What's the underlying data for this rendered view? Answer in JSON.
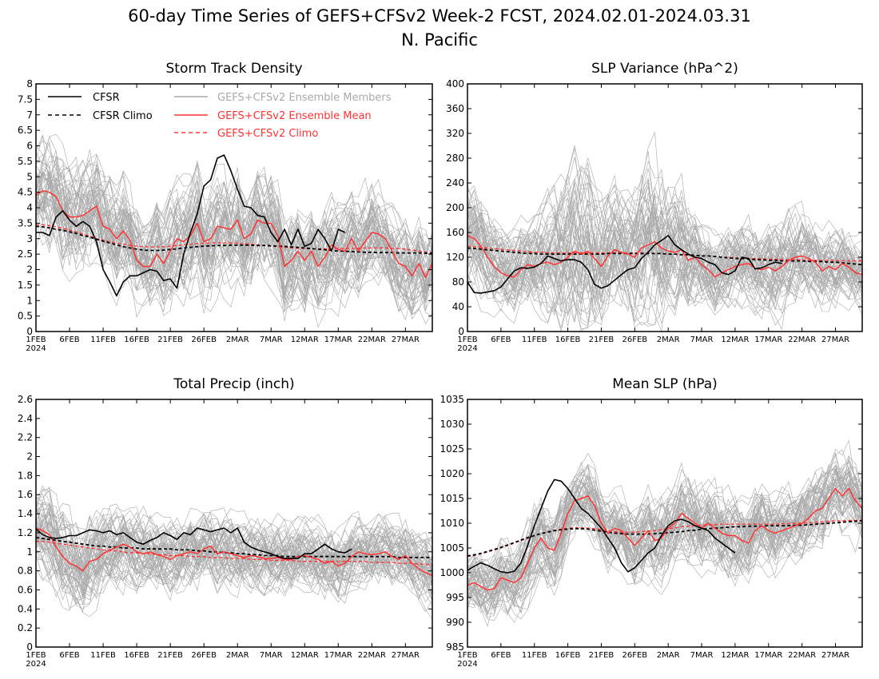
{
  "figure": {
    "title_line1": "60-day Time Series of GEFS+CFSv2 Week-2 FCST, 2024.02.01-2024.03.31",
    "title_line2": "N. Pacific"
  },
  "legend": {
    "cfsr": "CFSR",
    "cfsr_climo": "CFSR Climo",
    "members": "GEFS+CFSv2 Ensemble Members",
    "ens_mean": "GEFS+CFSv2 Ensemble Mean",
    "ens_climo": "GEFS+CFSv2 Climo"
  },
  "colors": {
    "cfsr": "#000000",
    "members": "#a9a9a9",
    "ens": "#ff3333"
  },
  "x_ticks": [
    "1FEB",
    "6FEB",
    "11FEB",
    "16FEB",
    "21FEB",
    "26FEB",
    "2MAR",
    "7MAR",
    "12MAR",
    "17MAR",
    "22MAR",
    "27MAR"
  ],
  "x_year": "2024",
  "chart_data": [
    {
      "type": "line",
      "title": "Storm Track Density",
      "ylim": [
        0,
        8
      ],
      "yticks": [
        "0",
        "0.5",
        "1",
        "1.5",
        "2",
        "2.5",
        "3",
        "3.5",
        "4",
        "4.5",
        "5",
        "5.5",
        "6",
        "6.5",
        "7",
        "7.5",
        "8"
      ],
      "x_days": 60,
      "cfsr": [
        3.2,
        3.2,
        3.1,
        3.7,
        3.9,
        3.6,
        3.4,
        3.55,
        3.4,
        2.9,
        2.0,
        1.6,
        1.15,
        1.6,
        1.8,
        1.8,
        1.9,
        2.0,
        1.95,
        1.65,
        1.7,
        1.4,
        2.5,
        3.2,
        3.8,
        4.7,
        4.9,
        5.6,
        5.7,
        5.2,
        4.6,
        4.05,
        4.0,
        3.75,
        3.7,
        3.2,
        2.9,
        3.3,
        2.8,
        3.3,
        2.75,
        2.85,
        3.3,
        3.0,
        2.6,
        3.3,
        3.2
      ],
      "cfsr_climo": [
        3.4,
        3.38,
        3.35,
        3.3,
        3.27,
        3.22,
        3.17,
        3.1,
        3.05,
        2.98,
        2.92,
        2.86,
        2.8,
        2.74,
        2.7,
        2.66,
        2.63,
        2.62,
        2.62,
        2.63,
        2.65,
        2.67,
        2.7,
        2.72,
        2.74,
        2.76,
        2.77,
        2.78,
        2.78,
        2.79,
        2.79,
        2.79,
        2.79,
        2.78,
        2.78,
        2.77,
        2.76,
        2.75,
        2.73,
        2.72,
        2.7,
        2.68,
        2.66,
        2.64,
        2.62,
        2.6,
        2.59,
        2.58,
        2.57,
        2.56,
        2.56,
        2.55,
        2.55,
        2.55,
        2.54,
        2.54,
        2.54,
        2.54,
        2.53,
        2.53
      ],
      "ens_mean": [
        4.4,
        4.55,
        4.5,
        4.35,
        3.9,
        3.7,
        3.7,
        3.75,
        3.9,
        4.05,
        3.4,
        3.3,
        3.0,
        3.25,
        2.95,
        2.3,
        2.1,
        2.1,
        2.5,
        2.2,
        2.6,
        3.0,
        2.9,
        3.1,
        3.5,
        2.9,
        3.0,
        3.4,
        3.35,
        3.3,
        3.6,
        3.0,
        3.15,
        3.6,
        3.5,
        3.5,
        3.1,
        2.1,
        2.3,
        2.6,
        2.3,
        2.6,
        2.1,
        2.4,
        2.8,
        2.65,
        2.6,
        3.0,
        2.6,
        2.9,
        3.2,
        3.15,
        3.0,
        2.6,
        2.2,
        2.1,
        1.8,
        2.2,
        1.75,
        2.2
      ],
      "ens_climo": [
        3.45,
        3.45,
        3.42,
        3.38,
        3.33,
        3.28,
        3.22,
        3.15,
        3.08,
        3.0,
        2.95,
        2.9,
        2.86,
        2.82,
        2.78,
        2.76,
        2.74,
        2.73,
        2.73,
        2.74,
        2.76,
        2.78,
        2.8,
        2.82,
        2.84,
        2.85,
        2.86,
        2.86,
        2.86,
        2.86,
        2.85,
        2.84,
        2.82,
        2.8,
        2.78,
        2.76,
        2.74,
        2.72,
        2.7,
        2.69,
        2.68,
        2.67,
        2.67,
        2.67,
        2.67,
        2.68,
        2.68,
        2.69,
        2.69,
        2.7,
        2.7,
        2.7,
        2.7,
        2.69,
        2.68,
        2.66,
        2.63,
        2.6,
        2.57,
        2.55
      ],
      "member_spread": [
        1.9,
        1.9,
        2.0,
        2.0,
        2.1,
        2.1,
        2.1,
        2.0,
        2.0,
        1.9,
        1.9,
        1.8,
        1.8,
        1.8,
        1.7,
        1.7,
        1.6,
        1.6,
        1.6,
        1.6,
        1.7,
        1.7,
        1.8,
        1.9,
        2.0,
        2.0,
        2.0,
        1.9,
        1.9,
        1.9,
        1.8,
        1.8,
        1.8,
        1.8,
        1.8,
        1.7,
        1.7,
        1.7,
        1.7,
        1.6,
        1.6,
        1.6,
        1.6,
        1.6,
        1.6,
        1.6,
        1.6,
        1.6,
        1.6,
        1.6,
        1.6,
        1.5,
        1.5,
        1.5,
        1.5,
        1.5,
        1.5,
        1.5,
        1.5,
        1.5
      ]
    },
    {
      "type": "line",
      "title": "SLP Variance (hPa^2)",
      "ylim": [
        0,
        400
      ],
      "yticks": [
        "0",
        "40",
        "80",
        "120",
        "160",
        "200",
        "240",
        "280",
        "320",
        "360",
        "400"
      ],
      "x_days": 60,
      "cfsr": [
        80,
        63,
        62,
        64,
        66,
        72,
        85,
        98,
        103,
        102,
        104,
        110,
        122,
        118,
        114,
        116,
        116,
        112,
        100,
        76,
        70,
        74,
        83,
        92,
        100,
        103,
        118,
        128,
        140,
        147,
        155,
        140,
        132,
        125,
        120,
        118,
        112,
        108,
        95,
        92,
        98,
        120,
        118,
        101,
        103,
        108,
        112,
        110
      ],
      "cfsr_climo": [
        135,
        134,
        133,
        132,
        131,
        130,
        129,
        128,
        127,
        126,
        126,
        125,
        125,
        125,
        125,
        125,
        125,
        125,
        125,
        125,
        125,
        126,
        126,
        126,
        126,
        126,
        126,
        126,
        126,
        126,
        125,
        125,
        124,
        124,
        123,
        122,
        122,
        121,
        120,
        119,
        118,
        118,
        117,
        116,
        116,
        115,
        115,
        114,
        114,
        114,
        114,
        113,
        113,
        113,
        112,
        112,
        111,
        110,
        109,
        108
      ],
      "ens_mean": [
        155,
        150,
        138,
        120,
        105,
        95,
        90,
        88,
        100,
        108,
        105,
        110,
        112,
        108,
        112,
        120,
        130,
        125,
        130,
        118,
        105,
        122,
        132,
        128,
        125,
        120,
        135,
        140,
        145,
        135,
        130,
        128,
        132,
        115,
        120,
        108,
        100,
        88,
        95,
        100,
        105,
        108,
        110,
        102,
        100,
        104,
        98,
        105,
        115,
        120,
        122,
        118,
        112,
        98,
        105,
        100,
        110,
        104,
        95,
        92
      ],
      "ens_climo": [
        138,
        137,
        136,
        135,
        134,
        133,
        132,
        131,
        130,
        129,
        128,
        128,
        127,
        127,
        127,
        127,
        127,
        127,
        127,
        127,
        127,
        127,
        127,
        127,
        127,
        127,
        127,
        127,
        126,
        126,
        125,
        125,
        124,
        124,
        123,
        122,
        122,
        121,
        120,
        120,
        119,
        119,
        118,
        118,
        117,
        117,
        117,
        116,
        116,
        116,
        116,
        115,
        115,
        115,
        115,
        115,
        114,
        114,
        114,
        114
      ],
      "member_spread": [
        90,
        90,
        85,
        80,
        75,
        70,
        65,
        65,
        70,
        75,
        80,
        90,
        100,
        110,
        120,
        130,
        140,
        150,
        150,
        130,
        110,
        100,
        95,
        95,
        100,
        110,
        120,
        130,
        130,
        120,
        110,
        100,
        95,
        85,
        80,
        75,
        70,
        65,
        65,
        65,
        65,
        65,
        65,
        65,
        65,
        70,
        75,
        80,
        80,
        75,
        70,
        65,
        65,
        60,
        60,
        60,
        60,
        55,
        55,
        55
      ]
    },
    {
      "type": "line",
      "title": "Total Precip (inch)",
      "ylim": [
        0,
        2.6
      ],
      "yticks": [
        "0",
        "0.2",
        "0.4",
        "0.6",
        "0.8",
        "1",
        "1.2",
        "1.4",
        "1.6",
        "1.8",
        "2",
        "2.2",
        "2.4",
        "2.6"
      ],
      "x_days": 60,
      "cfsr": [
        1.24,
        1.18,
        1.15,
        1.14,
        1.15,
        1.17,
        1.17,
        1.2,
        1.23,
        1.22,
        1.2,
        1.22,
        1.18,
        1.2,
        1.15,
        1.1,
        1.08,
        1.12,
        1.15,
        1.2,
        1.17,
        1.13,
        1.2,
        1.18,
        1.25,
        1.23,
        1.21,
        1.23,
        1.25,
        1.2,
        1.25,
        1.1,
        1.05,
        1.02,
        1.0,
        0.98,
        0.95,
        0.93,
        0.93,
        0.93,
        0.98,
        0.98,
        1.03,
        1.08,
        1.03,
        1.0,
        0.99,
        1.03
      ],
      "cfsr_climo": [
        1.15,
        1.14,
        1.13,
        1.12,
        1.11,
        1.1,
        1.09,
        1.08,
        1.07,
        1.06,
        1.06,
        1.05,
        1.05,
        1.04,
        1.04,
        1.04,
        1.03,
        1.03,
        1.03,
        1.03,
        1.03,
        1.02,
        1.02,
        1.02,
        1.01,
        1.01,
        1.0,
        1.0,
        0.99,
        0.99,
        0.98,
        0.98,
        0.97,
        0.97,
        0.96,
        0.96,
        0.96,
        0.95,
        0.95,
        0.95,
        0.95,
        0.95,
        0.95,
        0.95,
        0.95,
        0.95,
        0.95,
        0.95,
        0.95,
        0.95,
        0.95,
        0.95,
        0.95,
        0.95,
        0.94,
        0.94,
        0.94,
        0.94,
        0.94,
        0.94
      ],
      "ens_mean": [
        1.25,
        1.22,
        1.18,
        1.05,
        0.95,
        0.88,
        0.85,
        0.8,
        0.9,
        0.92,
        0.98,
        1.02,
        1.05,
        1.08,
        1.05,
        1.0,
        0.98,
        1.0,
        0.97,
        0.95,
        0.92,
        0.96,
        0.98,
        1.0,
        0.98,
        1.03,
        1.06,
        0.98,
        1.0,
        0.98,
        0.96,
        0.94,
        0.96,
        0.95,
        0.93,
        0.93,
        0.94,
        0.92,
        0.92,
        0.95,
        0.96,
        0.94,
        0.92,
        0.88,
        0.9,
        0.85,
        0.88,
        0.95,
        1.0,
        0.98,
        0.97,
        0.98,
        1.0,
        0.95,
        0.92,
        0.96,
        0.88,
        0.82,
        0.78,
        0.75
      ],
      "ens_climo": [
        1.11,
        1.11,
        1.1,
        1.09,
        1.08,
        1.07,
        1.06,
        1.05,
        1.04,
        1.03,
        1.02,
        1.01,
        1.01,
        1.0,
        0.99,
        0.99,
        0.98,
        0.98,
        0.97,
        0.97,
        0.96,
        0.96,
        0.96,
        0.95,
        0.95,
        0.95,
        0.94,
        0.94,
        0.94,
        0.93,
        0.93,
        0.93,
        0.92,
        0.92,
        0.92,
        0.91,
        0.91,
        0.91,
        0.91,
        0.9,
        0.9,
        0.9,
        0.9,
        0.9,
        0.9,
        0.9,
        0.9,
        0.9,
        0.9,
        0.9,
        0.89,
        0.89,
        0.89,
        0.89,
        0.88,
        0.88,
        0.88,
        0.87,
        0.87,
        0.86
      ],
      "member_spread": [
        0.5,
        0.5,
        0.5,
        0.5,
        0.5,
        0.5,
        0.48,
        0.48,
        0.48,
        0.48,
        0.45,
        0.45,
        0.45,
        0.45,
        0.42,
        0.42,
        0.42,
        0.4,
        0.4,
        0.4,
        0.4,
        0.4,
        0.4,
        0.4,
        0.4,
        0.4,
        0.4,
        0.4,
        0.4,
        0.4,
        0.38,
        0.38,
        0.38,
        0.38,
        0.38,
        0.38,
        0.38,
        0.38,
        0.38,
        0.38,
        0.38,
        0.38,
        0.38,
        0.38,
        0.38,
        0.38,
        0.38,
        0.38,
        0.38,
        0.38,
        0.36,
        0.36,
        0.36,
        0.36,
        0.36,
        0.36,
        0.36,
        0.36,
        0.36,
        0.36
      ]
    },
    {
      "type": "line",
      "title": "Mean SLP (hPa)",
      "ylim": [
        985,
        1035
      ],
      "yticks": [
        "985",
        "990",
        "995",
        "1000",
        "1005",
        "1010",
        "1015",
        "1020",
        "1025",
        "1030",
        "1035"
      ],
      "x_days": 60,
      "cfsr": [
        1000.5,
        1001.3,
        1002.0,
        1001.5,
        1000.8,
        1000.2,
        1000.0,
        1000.3,
        1002.0,
        1005.5,
        1009.5,
        1013.0,
        1016.5,
        1018.8,
        1018.5,
        1017.0,
        1015.0,
        1013.0,
        1012.0,
        1010.5,
        1009.0,
        1007.0,
        1005.0,
        1002.0,
        1000.2,
        1001.0,
        1002.5,
        1004.0,
        1005.0,
        1007.5,
        1009.5,
        1010.5,
        1010.8,
        1010.3,
        1009.5,
        1009.0,
        1008.5,
        1007.0,
        1006.0,
        1005.0,
        1004.0
      ],
      "cfsr_climo": [
        1003.4,
        1003.6,
        1003.9,
        1004.3,
        1004.7,
        1005.1,
        1005.6,
        1006.1,
        1006.6,
        1007.1,
        1007.5,
        1007.9,
        1008.2,
        1008.5,
        1008.7,
        1008.8,
        1008.9,
        1008.9,
        1008.8,
        1008.6,
        1008.4,
        1008.2,
        1008.0,
        1007.9,
        1007.8,
        1007.8,
        1007.8,
        1007.8,
        1007.9,
        1008.0,
        1008.1,
        1008.2,
        1008.3,
        1008.5,
        1008.6,
        1008.8,
        1008.9,
        1009.0,
        1009.1,
        1009.2,
        1009.3,
        1009.3,
        1009.4,
        1009.4,
        1009.4,
        1009.5,
        1009.5,
        1009.5,
        1009.5,
        1009.6,
        1009.6,
        1009.7,
        1009.8,
        1009.9,
        1010.0,
        1010.1,
        1010.2,
        1010.3,
        1010.4,
        1010.5
      ],
      "ens_mean": [
        997.5,
        998.0,
        997.2,
        996.5,
        996.8,
        999.0,
        998.5,
        998.0,
        999.0,
        1002.0,
        1005.0,
        1007.0,
        1005.0,
        1004.5,
        1008.0,
        1012.0,
        1014.5,
        1015.0,
        1015.5,
        1013.5,
        1010.0,
        1008.0,
        1009.0,
        1008.5,
        1007.0,
        1005.5,
        1007.0,
        1008.5,
        1006.5,
        1007.0,
        1009.0,
        1010.0,
        1012.0,
        1011.0,
        1010.0,
        1009.0,
        1010.0,
        1009.0,
        1008.0,
        1007.5,
        1007.5,
        1006.5,
        1006.0,
        1008.5,
        1009.5,
        1008.5,
        1008.0,
        1008.5,
        1009.0,
        1009.5,
        1010.0,
        1011.0,
        1012.5,
        1013.0,
        1015.0,
        1017.0,
        1015.5,
        1017.0,
        1014.5,
        1013.0
      ],
      "ens_climo": [
        1003.3,
        1003.5,
        1003.8,
        1004.2,
        1004.6,
        1005.0,
        1005.5,
        1006.0,
        1006.5,
        1007.0,
        1007.5,
        1007.9,
        1008.3,
        1008.6,
        1008.8,
        1009.0,
        1009.1,
        1009.1,
        1009.0,
        1008.9,
        1008.7,
        1008.5,
        1008.3,
        1008.2,
        1008.2,
        1008.2,
        1008.3,
        1008.4,
        1008.5,
        1008.7,
        1008.9,
        1009.1,
        1009.3,
        1009.4,
        1009.5,
        1009.6,
        1009.7,
        1009.7,
        1009.8,
        1009.8,
        1009.8,
        1009.8,
        1009.8,
        1009.8,
        1009.8,
        1009.8,
        1009.8,
        1009.9,
        1009.9,
        1010.0,
        1010.0,
        1010.1,
        1010.2,
        1010.3,
        1010.4,
        1010.5,
        1010.5,
        1010.6,
        1010.6,
        1010.6
      ],
      "member_spread": [
        6,
        6,
        6.5,
        7,
        7,
        7,
        7,
        7,
        7.5,
        8,
        8,
        8,
        8,
        8,
        8,
        7.5,
        7,
        7,
        7,
        7,
        7,
        7,
        7,
        7,
        7.5,
        8,
        8.5,
        9,
        9,
        9,
        9,
        9,
        9,
        9,
        9,
        9,
        9,
        9,
        9,
        9,
        9,
        9,
        8.5,
        8.5,
        8.5,
        8,
        8,
        8,
        8,
        8,
        8,
        8,
        8,
        8,
        8,
        8,
        8,
        8,
        8,
        8
      ]
    }
  ]
}
